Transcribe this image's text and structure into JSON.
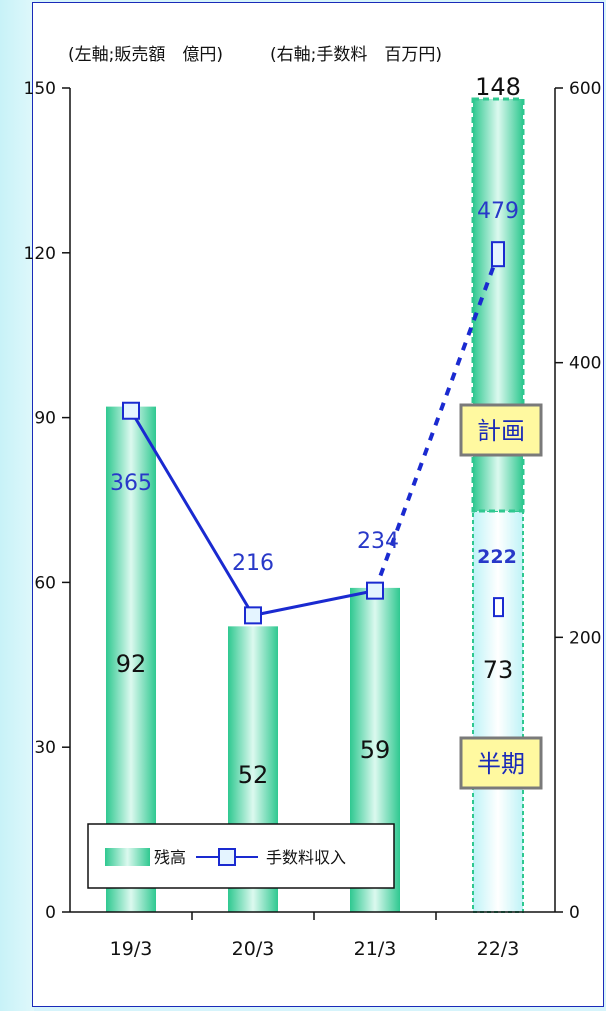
{
  "chart_data": {
    "type": "bar",
    "categories": [
      "19/3",
      "20/3",
      "21/3",
      "22/3"
    ],
    "left_axis_label": "(左軸;販売額　億円)",
    "right_axis_label": "(右軸;手数料　百万円)",
    "left_axis": {
      "min": 0,
      "max": 150,
      "ticks": [
        0,
        30,
        60,
        90,
        120,
        150
      ]
    },
    "right_axis": {
      "min": 0,
      "max": 600,
      "ticks": [
        0,
        200,
        400,
        600
      ]
    },
    "bars": {
      "name": "残高",
      "values": [
        92,
        52,
        59,
        73
      ],
      "labels": [
        "92",
        "52",
        "59",
        "73"
      ],
      "plan_total": 148,
      "plan_total_label": "148"
    },
    "line": {
      "name": "手数料収入",
      "values": [
        365,
        216,
        234,
        479
      ],
      "labels": [
        "365",
        "216",
        "234",
        "479"
      ],
      "half_year_value": 222,
      "half_year_label": "222"
    },
    "badges": {
      "plan": "計画",
      "half": "半期"
    },
    "legend_position": "bottom-left",
    "colors": {
      "bar": "#2fc890",
      "line": "#1a2ad0",
      "marker_fill": "#e4f4ff",
      "badge_bg": "#fff9a0"
    }
  }
}
